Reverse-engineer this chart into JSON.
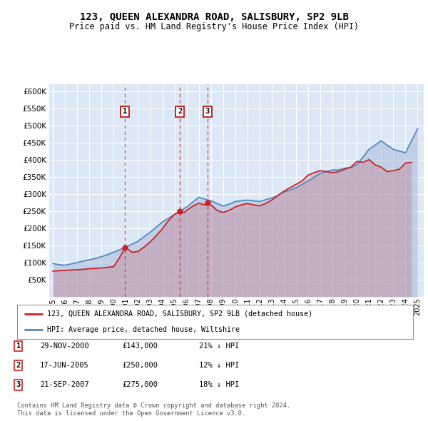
{
  "title": "123, QUEEN ALEXANDRA ROAD, SALISBURY, SP2 9LB",
  "subtitle": "Price paid vs. HM Land Registry's House Price Index (HPI)",
  "legend_line1": "123, QUEEN ALEXANDRA ROAD, SALISBURY, SP2 9LB (detached house)",
  "legend_line2": "HPI: Average price, detached house, Wiltshire",
  "footer1": "Contains HM Land Registry data © Crown copyright and database right 2024.",
  "footer2": "This data is licensed under the Open Government Licence v3.0.",
  "transactions": [
    {
      "num": 1,
      "date": "29-NOV-2000",
      "price": 143000,
      "pct": "21%",
      "dir": "↓",
      "year": 2000.91
    },
    {
      "num": 2,
      "date": "17-JUN-2005",
      "price": 250000,
      "pct": "12%",
      "dir": "↓",
      "year": 2005.46
    },
    {
      "num": 3,
      "date": "21-SEP-2007",
      "price": 275000,
      "pct": "18%",
      "dir": "↓",
      "year": 2007.72
    }
  ],
  "hpi_color": "#5588bb",
  "hpi_fill_color": "#aabbdd",
  "price_color": "#cc2222",
  "background_chart": "#dce8f5",
  "grid_color": "#ffffff",
  "ylim": [
    0,
    620000
  ],
  "yticks": [
    50000,
    100000,
    150000,
    200000,
    250000,
    300000,
    350000,
    400000,
    450000,
    500000,
    550000,
    600000
  ],
  "xlim_left": 1994.7,
  "xlim_right": 2025.5,
  "hpi_years": [
    1995.0,
    1995.5,
    1996.0,
    1996.5,
    1997.0,
    1997.5,
    1998.0,
    1998.5,
    1999.0,
    1999.5,
    2000.0,
    2000.5,
    2001.0,
    2001.5,
    2002.0,
    2002.5,
    2003.0,
    2003.5,
    2004.0,
    2004.5,
    2005.0,
    2005.5,
    2006.0,
    2006.5,
    2007.0,
    2007.5,
    2008.0,
    2008.5,
    2009.0,
    2009.5,
    2010.0,
    2010.5,
    2011.0,
    2011.5,
    2012.0,
    2012.5,
    2013.0,
    2013.5,
    2014.0,
    2014.5,
    2015.0,
    2015.5,
    2016.0,
    2016.5,
    2017.0,
    2017.5,
    2018.0,
    2018.5,
    2019.0,
    2019.5,
    2020.0,
    2020.5,
    2021.0,
    2021.5,
    2022.0,
    2022.5,
    2023.0,
    2023.5,
    2024.0,
    2024.5,
    2025.0
  ],
  "hpi_values": [
    97000,
    94000,
    92000,
    96000,
    100000,
    104000,
    108000,
    112000,
    117000,
    123000,
    130000,
    137000,
    145000,
    153000,
    162000,
    175000,
    188000,
    203000,
    218000,
    229000,
    240000,
    250000,
    262000,
    276000,
    290000,
    285000,
    280000,
    272000,
    265000,
    270000,
    278000,
    280000,
    282000,
    280000,
    278000,
    283000,
    288000,
    296000,
    305000,
    311000,
    318000,
    328000,
    338000,
    349000,
    360000,
    365000,
    370000,
    370000,
    375000,
    377000,
    385000,
    407000,
    430000,
    442000,
    455000,
    442000,
    430000,
    425000,
    420000,
    455000,
    490000
  ],
  "price_years": [
    1995.0,
    1995.5,
    1996.0,
    1996.5,
    1997.0,
    1997.5,
    1998.0,
    1998.5,
    1999.0,
    1999.5,
    2000.0,
    2000.5,
    2000.91,
    2001.2,
    2001.5,
    2002.0,
    2002.5,
    2003.0,
    2003.5,
    2004.0,
    2004.5,
    2005.0,
    2005.46,
    2005.8,
    2006.0,
    2006.5,
    2007.0,
    2007.5,
    2007.72,
    2008.2,
    2008.5,
    2009.0,
    2009.5,
    2010.0,
    2010.5,
    2011.0,
    2011.5,
    2012.0,
    2012.5,
    2013.0,
    2013.5,
    2014.0,
    2014.5,
    2015.0,
    2015.5,
    2016.0,
    2016.5,
    2017.0,
    2017.5,
    2018.0,
    2018.5,
    2019.0,
    2019.5,
    2020.0,
    2020.5,
    2021.0,
    2021.5,
    2022.0,
    2022.5,
    2023.0,
    2023.5,
    2024.0,
    2024.5
  ],
  "price_values": [
    75000,
    76000,
    77000,
    78000,
    79000,
    80000,
    82000,
    83000,
    84000,
    86000,
    88000,
    115000,
    143000,
    138000,
    130000,
    132000,
    145000,
    160000,
    178000,
    198000,
    222000,
    240000,
    250000,
    246000,
    252000,
    264000,
    273000,
    268000,
    275000,
    262000,
    252000,
    246000,
    252000,
    262000,
    268000,
    272000,
    268000,
    265000,
    272000,
    282000,
    295000,
    308000,
    318000,
    328000,
    338000,
    355000,
    362000,
    368000,
    365000,
    362000,
    365000,
    372000,
    378000,
    395000,
    392000,
    400000,
    385000,
    378000,
    365000,
    368000,
    372000,
    390000,
    392000
  ]
}
